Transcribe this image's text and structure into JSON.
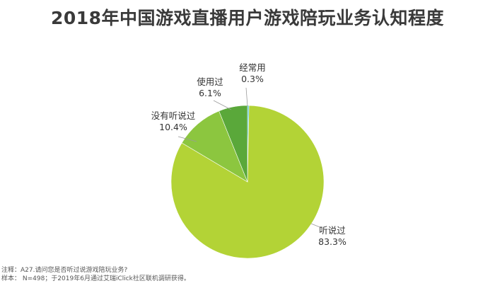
{
  "title": "2018年中国游戏直播用户游戏陪玩业务认知程度",
  "chart_data": {
    "type": "pie",
    "title": "2018年中国游戏直播用户游戏陪玩业务认知程度",
    "slices": [
      {
        "label": "经常用",
        "value": 0.3,
        "value_label": "0.3%",
        "color": "#33b7d3"
      },
      {
        "label": "听说过",
        "value": 83.3,
        "value_label": "83.3%",
        "color": "#b3d336"
      },
      {
        "label": "没有听说过",
        "value": 10.4,
        "value_label": "10.4%",
        "color": "#8cc63f"
      },
      {
        "label": "使用过",
        "value": 6.1,
        "value_label": "6.1%",
        "color": "#5aa83a"
      }
    ]
  },
  "footnotes": {
    "note": "注释：A27.请问您是否听过说游戏陪玩业务?",
    "sample": "样本： N=498；于2019年6月通过艾瑞iClick社区联机调研获得。"
  }
}
